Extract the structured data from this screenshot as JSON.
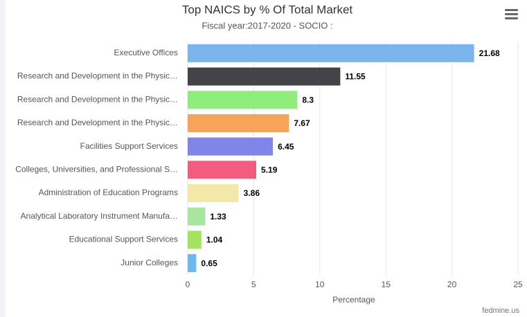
{
  "chart_data": {
    "type": "bar",
    "orientation": "horizontal",
    "title": "Top NAICS by % Of Total Market",
    "subtitle": "Fiscal year:2017-2020 - SOCIO :",
    "x_label": "Percentage",
    "credits": "fedmine.us",
    "categories": [
      "Executive Offices",
      "Research and Development in the Physic…",
      "Research and Development in the Physic…",
      "Research and Development in the Physic…",
      "Facilities Support Services",
      "Colleges, Universities, and Professional S…",
      "Administration of Education Programs",
      "Analytical Laboratory Instrument Manufa…",
      "Educational Support Services",
      "Junior Colleges"
    ],
    "values": [
      21.68,
      11.55,
      8.3,
      7.67,
      6.45,
      5.19,
      3.86,
      1.33,
      1.04,
      0.65
    ],
    "colors": [
      "#7cb5ec",
      "#434348",
      "#90ed7d",
      "#f7a35c",
      "#8085e9",
      "#f15c80",
      "#f3e8a8",
      "#a8e6a0",
      "#a3e35f",
      "#6cb9f0"
    ],
    "xlim": [
      0,
      25
    ],
    "xticks": [
      0,
      5,
      10,
      15,
      20,
      25
    ],
    "grid": true
  }
}
